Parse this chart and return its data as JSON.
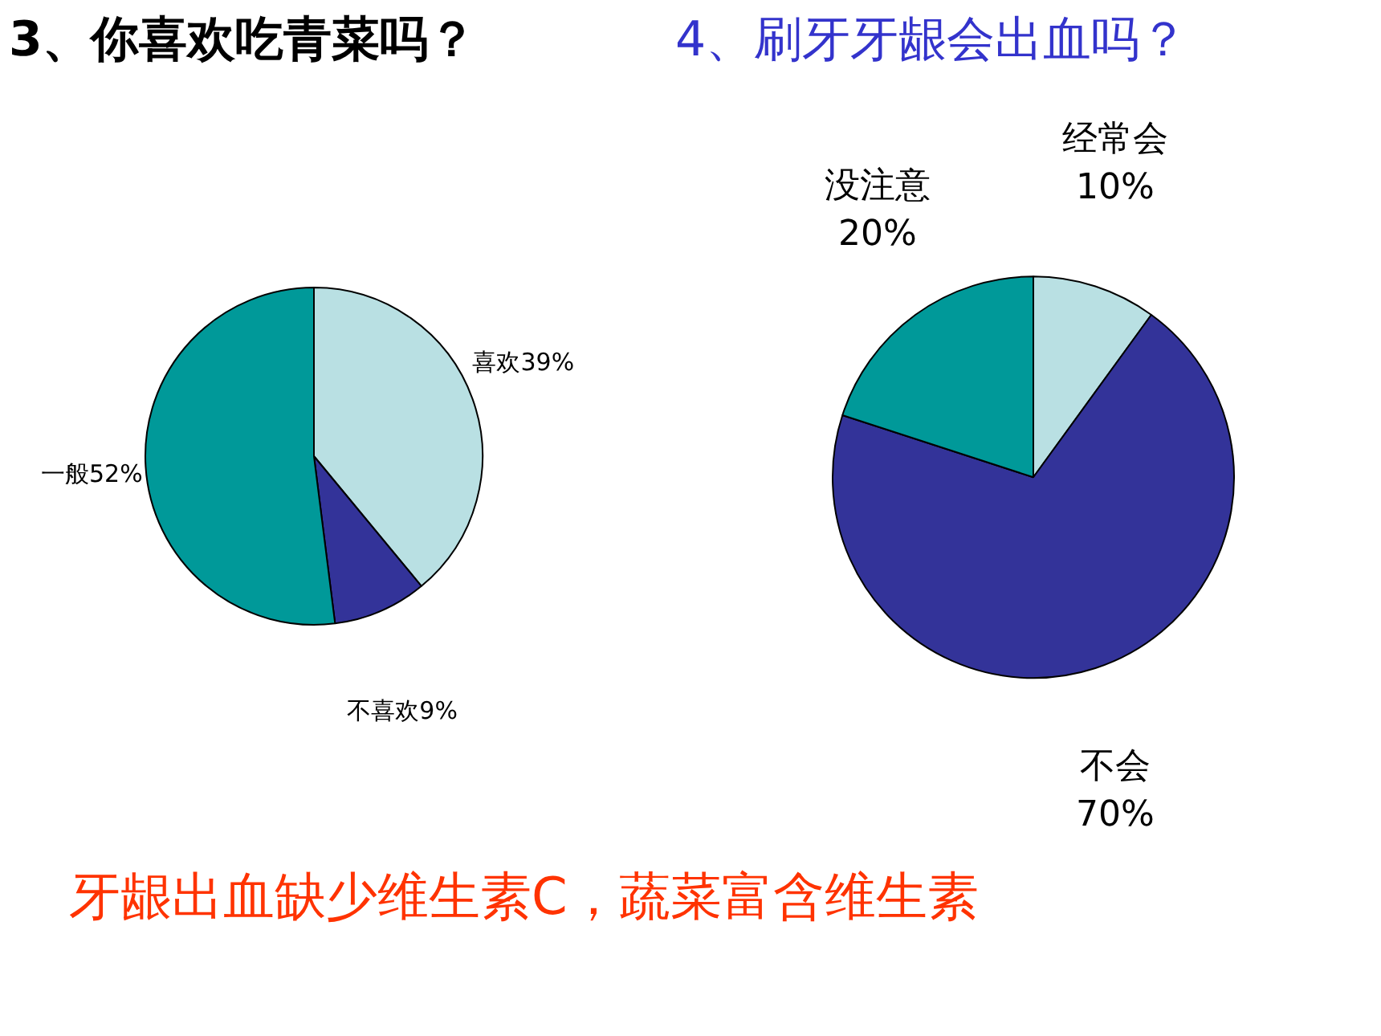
{
  "chart_data": [
    {
      "type": "pie",
      "title": "3、你喜欢吃青菜吗？",
      "categories": [
        "喜欢",
        "不喜欢",
        "一般"
      ],
      "values": [
        39,
        9,
        52
      ],
      "value_labels": [
        "39%",
        "9%",
        "52%"
      ],
      "colors": [
        "#b9e0e3",
        "#333399",
        "#009999"
      ],
      "annotations": [
        "牙龈出血缺少维生素C，蔬菜富含维生素"
      ]
    },
    {
      "type": "pie",
      "title": "4、刷牙牙龈会出血吗？",
      "categories": [
        "经常会",
        "不会",
        "没注意"
      ],
      "values": [
        10,
        70,
        20
      ],
      "value_labels": [
        "10%",
        "70%",
        "20%"
      ],
      "colors": [
        "#b9e0e3",
        "#333399",
        "#009999"
      ]
    }
  ]
}
